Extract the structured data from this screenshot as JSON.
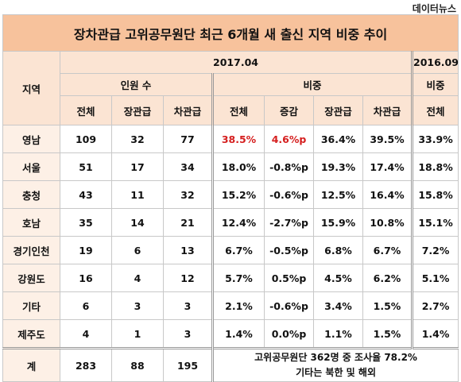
{
  "source": "데이터뉴스",
  "title": "장차관급 고위공무원단 최근 6개월 새 출신 지역 비중 추이",
  "periods": {
    "current": "2017.04",
    "previous": "2016.09"
  },
  "headers": {
    "region": "지역",
    "count_group": "인원 수",
    "ratio_group": "비중",
    "prev_ratio_group": "비중",
    "count_cols": [
      "전체",
      "장관급",
      "차관급"
    ],
    "ratio_cols": [
      "전체",
      "증감",
      "장관급",
      "차관급"
    ],
    "prev_col": "전체"
  },
  "rows": [
    {
      "region": "영남",
      "total": "109",
      "minister": "32",
      "vice": "77",
      "r_total": "38.5%",
      "r_change": "4.6%p",
      "r_minister": "36.4%",
      "r_vice": "39.5%",
      "prev_total": "33.9%"
    },
    {
      "region": "서울",
      "total": "51",
      "minister": "17",
      "vice": "34",
      "r_total": "18.0%",
      "r_change": "-0.8%p",
      "r_minister": "19.3%",
      "r_vice": "17.4%",
      "prev_total": "18.8%"
    },
    {
      "region": "충청",
      "total": "43",
      "minister": "11",
      "vice": "32",
      "r_total": "15.2%",
      "r_change": "-0.6%p",
      "r_minister": "12.5%",
      "r_vice": "16.4%",
      "prev_total": "15.8%"
    },
    {
      "region": "호남",
      "total": "35",
      "minister": "14",
      "vice": "21",
      "r_total": "12.4%",
      "r_change": "-2.7%p",
      "r_minister": "15.9%",
      "r_vice": "10.8%",
      "prev_total": "15.1%"
    },
    {
      "region": "경기인천",
      "total": "19",
      "minister": "6",
      "vice": "13",
      "r_total": "6.7%",
      "r_change": "-0.5%p",
      "r_minister": "6.8%",
      "r_vice": "6.7%",
      "prev_total": "7.2%"
    },
    {
      "region": "강원도",
      "total": "16",
      "minister": "4",
      "vice": "12",
      "r_total": "5.7%",
      "r_change": "0.5%p",
      "r_minister": "4.5%",
      "r_vice": "6.2%",
      "prev_total": "5.1%"
    },
    {
      "region": "기타",
      "total": "6",
      "minister": "3",
      "vice": "3",
      "r_total": "2.1%",
      "r_change": "-0.6%p",
      "r_minister": "3.4%",
      "r_vice": "1.5%",
      "prev_total": "2.7%"
    },
    {
      "region": "제주도",
      "total": "4",
      "minister": "1",
      "vice": "3",
      "r_total": "1.4%",
      "r_change": "0.0%p",
      "r_minister": "1.1%",
      "r_vice": "1.5%",
      "prev_total": "1.4%"
    }
  ],
  "total_row": {
    "label": "계",
    "total": "283",
    "minister": "88",
    "vice": "195",
    "note_line1": "고위공무원단 362명 중 조사율 78.2%",
    "note_line2": "기타는 북한 및 해외"
  },
  "colors": {
    "title_bg": "#f7c29c",
    "header_bg": "#fbe4d3",
    "region_bg": "#fdf0e6",
    "highlight": "#d51f1f"
  }
}
